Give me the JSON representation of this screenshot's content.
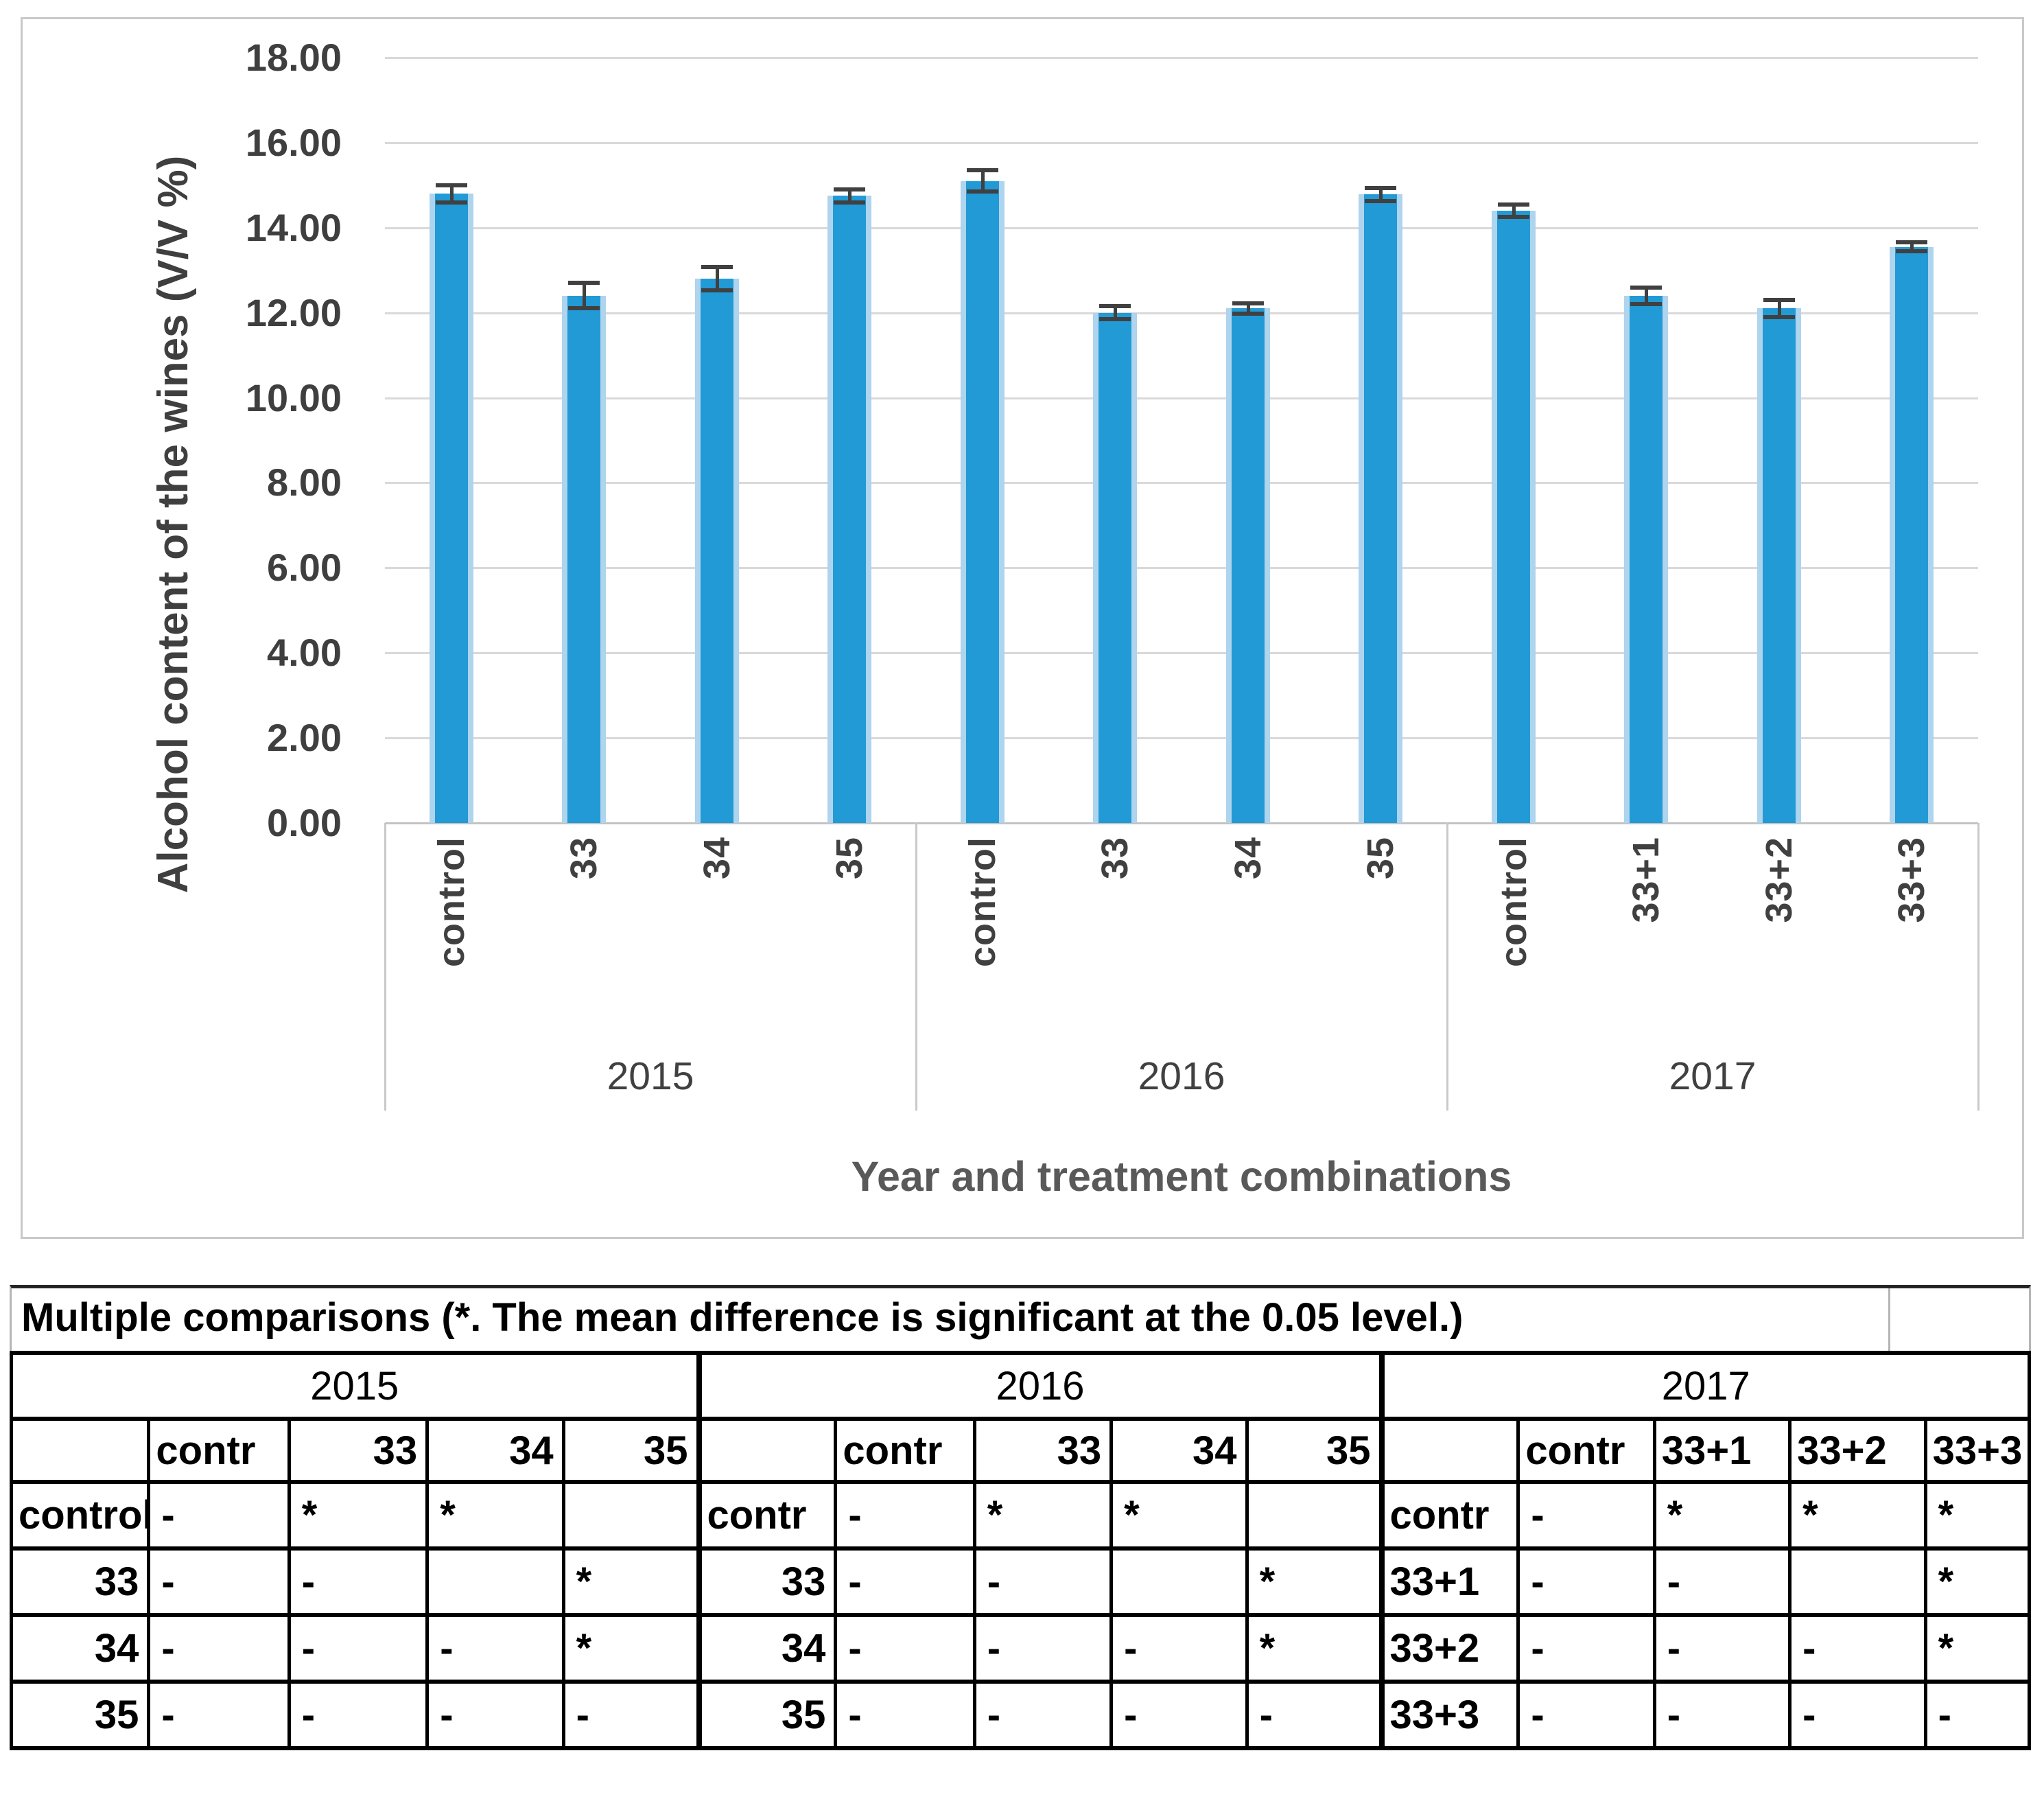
{
  "chart_data": {
    "type": "bar",
    "title": "",
    "ylabel": "Alcohol content of the wines (V/V %)",
    "xlabel": "Year and treatment combinations",
    "ylim": [
      0,
      18
    ],
    "ytick_step": 2,
    "yticks": [
      "0.00",
      "2.00",
      "4.00",
      "6.00",
      "8.00",
      "10.00",
      "12.00",
      "14.00",
      "16.00",
      "18.00"
    ],
    "grid": true,
    "legend": "none",
    "bar_color": "#219ad6",
    "bar_edge_color": "#aed4ee",
    "error_bar_color": "#404040",
    "groups": [
      {
        "year": "2015",
        "categories": [
          "control",
          "33",
          "34",
          "35"
        ],
        "values": [
          14.8,
          12.4,
          12.8,
          14.75
        ],
        "errors": [
          0.2,
          0.3,
          0.28,
          0.15
        ]
      },
      {
        "year": "2016",
        "categories": [
          "control",
          "33",
          "34",
          "35"
        ],
        "values": [
          15.1,
          12.0,
          12.1,
          14.78
        ],
        "errors": [
          0.25,
          0.15,
          0.12,
          0.15
        ]
      },
      {
        "year": "2017",
        "categories": [
          "control",
          "33+1",
          "33+2",
          "33+3"
        ],
        "values": [
          14.4,
          12.4,
          12.1,
          13.55
        ],
        "errors": [
          0.15,
          0.2,
          0.2,
          0.1
        ]
      }
    ]
  },
  "table": {
    "title": "Multiple comparisons (*. The mean difference is significant at the 0.05 level.)",
    "groups": [
      {
        "year": "2015",
        "col_headers": [
          "contr",
          "33",
          "34",
          "35"
        ],
        "rows": [
          {
            "label": "control",
            "cells": [
              "-",
              "*",
              "*",
              ""
            ]
          },
          {
            "label": "33",
            "cells": [
              "-",
              "-",
              "",
              "*"
            ]
          },
          {
            "label": "34",
            "cells": [
              "-",
              "-",
              "-",
              "*"
            ]
          },
          {
            "label": "35",
            "cells": [
              "-",
              "-",
              "-",
              "-"
            ]
          }
        ]
      },
      {
        "year": "2016",
        "col_headers": [
          "contr",
          "33",
          "34",
          "35"
        ],
        "rows": [
          {
            "label": "contr",
            "cells": [
              "-",
              "*",
              "*",
              ""
            ]
          },
          {
            "label": "33",
            "cells": [
              "-",
              "-",
              "",
              "*"
            ]
          },
          {
            "label": "34",
            "cells": [
              "-",
              "-",
              "-",
              "*"
            ]
          },
          {
            "label": "35",
            "cells": [
              "-",
              "-",
              "-",
              "-"
            ]
          }
        ]
      },
      {
        "year": "2017",
        "col_headers": [
          "contr",
          "33+1",
          "33+2",
          "33+3"
        ],
        "rows": [
          {
            "label": "contr",
            "cells": [
              "-",
              "*",
              "*",
              "*"
            ]
          },
          {
            "label": "33+1",
            "cells": [
              "-",
              "-",
              "",
              "*"
            ]
          },
          {
            "label": "33+2",
            "cells": [
              "-",
              "-",
              "-",
              "*"
            ]
          },
          {
            "label": "33+3",
            "cells": [
              "-",
              "-",
              "-",
              "-"
            ]
          }
        ]
      }
    ]
  }
}
